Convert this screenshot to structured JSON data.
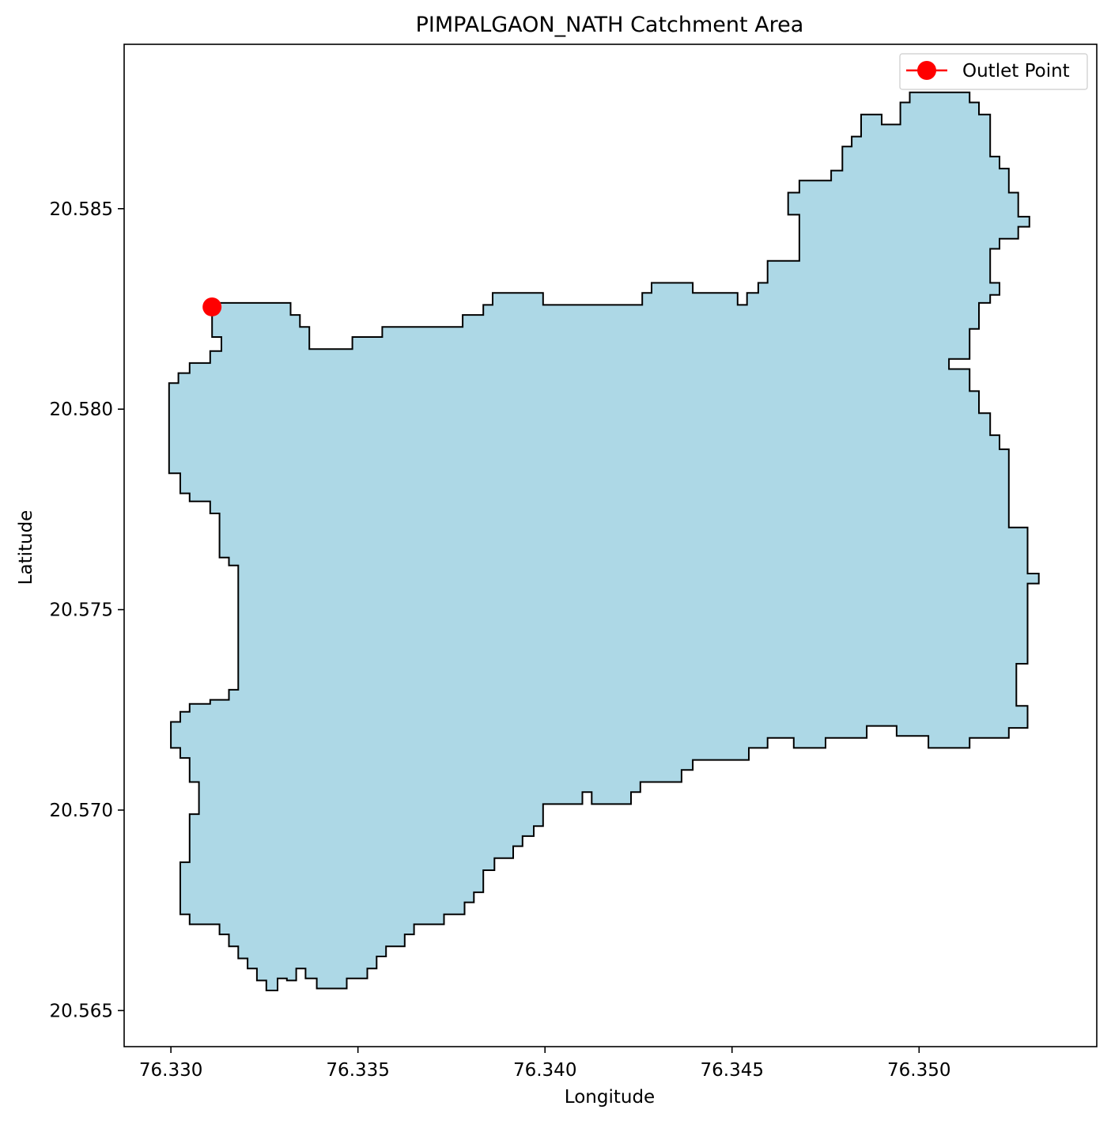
{
  "chart_data": {
    "type": "map",
    "title": "PIMPALGAON_NATH Catchment Area",
    "xlabel": "Longitude",
    "ylabel": "Latitude",
    "xlim": [
      76.32875,
      76.35475
    ],
    "ylim": [
      20.5641,
      20.5891
    ],
    "xticks": [
      {
        "value": 76.33,
        "label": "76.330"
      },
      {
        "value": 76.335,
        "label": "76.335"
      },
      {
        "value": 76.34,
        "label": "76.340"
      },
      {
        "value": 76.345,
        "label": "76.345"
      },
      {
        "value": 76.35,
        "label": "76.350"
      }
    ],
    "yticks": [
      {
        "value": 20.565,
        "label": "20.565"
      },
      {
        "value": 20.57,
        "label": "20.570"
      },
      {
        "value": 20.575,
        "label": "20.575"
      },
      {
        "value": 20.58,
        "label": "20.580"
      },
      {
        "value": 20.585,
        "label": "20.585"
      }
    ],
    "legend": {
      "position": "top-right",
      "entries": [
        {
          "label": "Outlet Point",
          "color": "#ff0000"
        }
      ]
    },
    "fill_color": "#add8e6",
    "edge_color": "#000000",
    "outlet": {
      "lon": 76.3311,
      "lat": 20.58255,
      "color": "#ff0000"
    },
    "boundary": [
      [
        76.3311,
        20.58265
      ],
      [
        76.3332,
        20.58265
      ],
      [
        76.3332,
        20.58235
      ],
      [
        76.33345,
        20.58235
      ],
      [
        76.33345,
        20.58205
      ],
      [
        76.3337,
        20.58205
      ],
      [
        76.3337,
        20.5815
      ],
      [
        76.33485,
        20.5815
      ],
      [
        76.33485,
        20.5818
      ],
      [
        76.33565,
        20.5818
      ],
      [
        76.33565,
        20.58205
      ],
      [
        76.3378,
        20.58205
      ],
      [
        76.3378,
        20.58235
      ],
      [
        76.33835,
        20.58235
      ],
      [
        76.33835,
        20.5826
      ],
      [
        76.3386,
        20.5826
      ],
      [
        76.3386,
        20.5829
      ],
      [
        76.33995,
        20.5829
      ],
      [
        76.33995,
        20.5826
      ],
      [
        76.3426,
        20.5826
      ],
      [
        76.3426,
        20.5829
      ],
      [
        76.34285,
        20.5829
      ],
      [
        76.34285,
        20.58315
      ],
      [
        76.34395,
        20.58315
      ],
      [
        76.34395,
        20.5829
      ],
      [
        76.34515,
        20.5829
      ],
      [
        76.34515,
        20.5826
      ],
      [
        76.3454,
        20.5826
      ],
      [
        76.3454,
        20.5829
      ],
      [
        76.3457,
        20.5829
      ],
      [
        76.3457,
        20.58315
      ],
      [
        76.34595,
        20.58315
      ],
      [
        76.34595,
        20.5837
      ],
      [
        76.3468,
        20.5837
      ],
      [
        76.3468,
        20.58485
      ],
      [
        76.3465,
        20.58485
      ],
      [
        76.3465,
        20.5854
      ],
      [
        76.3468,
        20.5854
      ],
      [
        76.3468,
        20.5857
      ],
      [
        76.34765,
        20.5857
      ],
      [
        76.34765,
        20.58595
      ],
      [
        76.34795,
        20.58595
      ],
      [
        76.34795,
        20.58655
      ],
      [
        76.3482,
        20.58655
      ],
      [
        76.3482,
        20.5868
      ],
      [
        76.34845,
        20.5868
      ],
      [
        76.34845,
        20.58735
      ],
      [
        76.349,
        20.58735
      ],
      [
        76.349,
        20.5871
      ],
      [
        76.3495,
        20.5871
      ],
      [
        76.3495,
        20.58765
      ],
      [
        76.34975,
        20.58765
      ],
      [
        76.34975,
        20.5879
      ],
      [
        76.35135,
        20.5879
      ],
      [
        76.35135,
        20.58765
      ],
      [
        76.3516,
        20.58765
      ],
      [
        76.3516,
        20.58735
      ],
      [
        76.3519,
        20.58735
      ],
      [
        76.3519,
        20.5863
      ],
      [
        76.35215,
        20.5863
      ],
      [
        76.35215,
        20.586
      ],
      [
        76.3524,
        20.586
      ],
      [
        76.3524,
        20.5854
      ],
      [
        76.35265,
        20.5854
      ],
      [
        76.35265,
        20.5848
      ],
      [
        76.35295,
        20.5848
      ],
      [
        76.35295,
        20.58455
      ],
      [
        76.35265,
        20.58455
      ],
      [
        76.35265,
        20.58425
      ],
      [
        76.35215,
        20.58425
      ],
      [
        76.35215,
        20.584
      ],
      [
        76.3519,
        20.584
      ],
      [
        76.3519,
        20.58315
      ],
      [
        76.35215,
        20.58315
      ],
      [
        76.35215,
        20.58285
      ],
      [
        76.3519,
        20.58285
      ],
      [
        76.3519,
        20.58265
      ],
      [
        76.3516,
        20.58265
      ],
      [
        76.3516,
        20.582
      ],
      [
        76.35135,
        20.582
      ],
      [
        76.35135,
        20.58125
      ],
      [
        76.3508,
        20.58125
      ],
      [
        76.3508,
        20.581
      ],
      [
        76.35135,
        20.581
      ],
      [
        76.35135,
        20.58045
      ],
      [
        76.3516,
        20.58045
      ],
      [
        76.3516,
        20.5799
      ],
      [
        76.3519,
        20.5799
      ],
      [
        76.3519,
        20.57935
      ],
      [
        76.35215,
        20.57935
      ],
      [
        76.35215,
        20.579
      ],
      [
        76.3524,
        20.579
      ],
      [
        76.3524,
        20.57705
      ],
      [
        76.3529,
        20.57705
      ],
      [
        76.3529,
        20.5759
      ],
      [
        76.3532,
        20.5759
      ],
      [
        76.3532,
        20.57565
      ],
      [
        76.3529,
        20.57565
      ],
      [
        76.3529,
        20.57365
      ],
      [
        76.3526,
        20.57365
      ],
      [
        76.3526,
        20.5726
      ],
      [
        76.3529,
        20.5726
      ],
      [
        76.3529,
        20.57205
      ],
      [
        76.3524,
        20.57205
      ],
      [
        76.3524,
        20.5718
      ],
      [
        76.35135,
        20.5718
      ],
      [
        76.35135,
        20.57155
      ],
      [
        76.35025,
        20.57155
      ],
      [
        76.35025,
        20.57185
      ],
      [
        76.3494,
        20.57185
      ],
      [
        76.3494,
        20.5721
      ],
      [
        76.3486,
        20.5721
      ],
      [
        76.3486,
        20.5718
      ],
      [
        76.3475,
        20.5718
      ],
      [
        76.3475,
        20.57155
      ],
      [
        76.34665,
        20.57155
      ],
      [
        76.34665,
        20.5718
      ],
      [
        76.34595,
        20.5718
      ],
      [
        76.34595,
        20.57155
      ],
      [
        76.34545,
        20.57155
      ],
      [
        76.34545,
        20.57125
      ],
      [
        76.34395,
        20.57125
      ],
      [
        76.34395,
        20.571
      ],
      [
        76.34365,
        20.571
      ],
      [
        76.34365,
        20.5707
      ],
      [
        76.34255,
        20.5707
      ],
      [
        76.34255,
        20.57045
      ],
      [
        76.3423,
        20.57045
      ],
      [
        76.3423,
        20.57015
      ],
      [
        76.34125,
        20.57015
      ],
      [
        76.34125,
        20.57045
      ],
      [
        76.341,
        20.57045
      ],
      [
        76.341,
        20.57015
      ],
      [
        76.33995,
        20.57015
      ],
      [
        76.33995,
        20.5696
      ],
      [
        76.3397,
        20.5696
      ],
      [
        76.3397,
        20.56935
      ],
      [
        76.3394,
        20.56935
      ],
      [
        76.3394,
        20.5691
      ],
      [
        76.33915,
        20.5691
      ],
      [
        76.33915,
        20.5688
      ],
      [
        76.33865,
        20.5688
      ],
      [
        76.33865,
        20.5685
      ],
      [
        76.33835,
        20.5685
      ],
      [
        76.33835,
        20.56795
      ],
      [
        76.3381,
        20.56795
      ],
      [
        76.3381,
        20.5677
      ],
      [
        76.33785,
        20.5677
      ],
      [
        76.33785,
        20.5674
      ],
      [
        76.3373,
        20.5674
      ],
      [
        76.3373,
        20.56715
      ],
      [
        76.3365,
        20.56715
      ],
      [
        76.3365,
        20.5669
      ],
      [
        76.33625,
        20.5669
      ],
      [
        76.33625,
        20.5666
      ],
      [
        76.33575,
        20.5666
      ],
      [
        76.33575,
        20.56635
      ],
      [
        76.3355,
        20.56635
      ],
      [
        76.3355,
        20.56605
      ],
      [
        76.33525,
        20.56605
      ],
      [
        76.33525,
        20.5658
      ],
      [
        76.3347,
        20.5658
      ],
      [
        76.3347,
        20.56555
      ],
      [
        76.3339,
        20.56555
      ],
      [
        76.3339,
        20.5658
      ],
      [
        76.3336,
        20.5658
      ],
      [
        76.3336,
        20.56605
      ],
      [
        76.33335,
        20.56605
      ],
      [
        76.33335,
        20.56575
      ],
      [
        76.3331,
        20.56575
      ],
      [
        76.3331,
        20.5658
      ],
      [
        76.33285,
        20.5658
      ],
      [
        76.33285,
        20.5655
      ],
      [
        76.33255,
        20.5655
      ],
      [
        76.33255,
        20.56575
      ],
      [
        76.3323,
        20.56575
      ],
      [
        76.3323,
        20.56605
      ],
      [
        76.33205,
        20.56605
      ],
      [
        76.33205,
        20.5663
      ],
      [
        76.3318,
        20.5663
      ],
      [
        76.3318,
        20.5666
      ],
      [
        76.33155,
        20.5666
      ],
      [
        76.33155,
        20.5669
      ],
      [
        76.3313,
        20.5669
      ],
      [
        76.3313,
        20.56715
      ],
      [
        76.3305,
        20.56715
      ],
      [
        76.3305,
        20.5674
      ],
      [
        76.33025,
        20.5674
      ],
      [
        76.33025,
        20.5687
      ],
      [
        76.3305,
        20.5687
      ],
      [
        76.3305,
        20.5699
      ],
      [
        76.33075,
        20.5699
      ],
      [
        76.33075,
        20.5707
      ],
      [
        76.3305,
        20.5707
      ],
      [
        76.3305,
        20.5713
      ],
      [
        76.33025,
        20.5713
      ],
      [
        76.33025,
        20.57155
      ],
      [
        76.33,
        20.57155
      ],
      [
        76.33,
        20.5722
      ],
      [
        76.33025,
        20.5722
      ],
      [
        76.33025,
        20.57245
      ],
      [
        76.3305,
        20.57245
      ],
      [
        76.3305,
        20.57265
      ],
      [
        76.33105,
        20.57265
      ],
      [
        76.33105,
        20.57275
      ],
      [
        76.33155,
        20.57275
      ],
      [
        76.33155,
        20.573
      ],
      [
        76.3318,
        20.573
      ],
      [
        76.3318,
        20.5761
      ],
      [
        76.33155,
        20.5761
      ],
      [
        76.33155,
        20.5763
      ],
      [
        76.3313,
        20.5763
      ],
      [
        76.3313,
        20.5774
      ],
      [
        76.33105,
        20.5774
      ],
      [
        76.33105,
        20.5777
      ],
      [
        76.3305,
        20.5777
      ],
      [
        76.3305,
        20.5779
      ],
      [
        76.33025,
        20.5779
      ],
      [
        76.33025,
        20.5784
      ],
      [
        76.32995,
        20.5784
      ],
      [
        76.32995,
        20.58065
      ],
      [
        76.3302,
        20.58065
      ],
      [
        76.3302,
        20.5809
      ],
      [
        76.3305,
        20.5809
      ],
      [
        76.3305,
        20.58115
      ],
      [
        76.33105,
        20.58115
      ],
      [
        76.33105,
        20.58145
      ],
      [
        76.33135,
        20.58145
      ],
      [
        76.33135,
        20.5818
      ],
      [
        76.3311,
        20.5818
      ]
    ]
  }
}
